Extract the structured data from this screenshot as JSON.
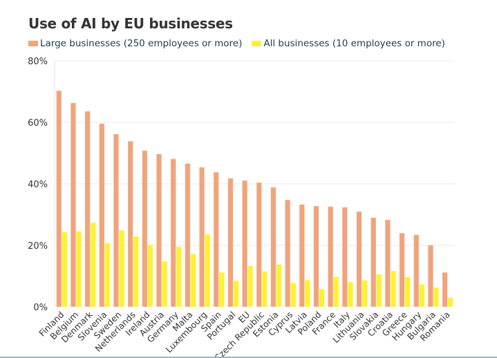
{
  "chart_data": {
    "type": "bar",
    "title": "Use of AI by EU businesses",
    "xlabel": "",
    "ylabel": "",
    "ylim": [
      0,
      80
    ],
    "yticks": [
      "0%",
      "20%",
      "40%",
      "60%",
      "80%"
    ],
    "ytick_values": [
      0,
      20,
      40,
      60,
      80
    ],
    "grid": true,
    "legend_position": "top-left",
    "categories": [
      "Finland",
      "Belgium",
      "Denmark",
      "Slovenia",
      "Sweden",
      "Netherlands",
      "Ireland",
      "Austria",
      "Germany",
      "Malta",
      "Luxembourg",
      "Spain",
      "Portugal",
      "EU",
      "Czech Republic",
      "Estonia",
      "Cyprus",
      "Latvia",
      "Poland",
      "France",
      "Italy",
      "Lithuania",
      "Slovakia",
      "Croatia",
      "Greece",
      "Hungary",
      "Bulgaria",
      "Romania"
    ],
    "series": [
      {
        "name": "Large businesses (250 employees or more)",
        "color": "#f0a47c",
        "values": [
          70.3,
          66.3,
          63.6,
          59.6,
          56.2,
          53.9,
          50.8,
          49.7,
          48.1,
          46.6,
          45.4,
          43.8,
          41.8,
          41.1,
          40.4,
          38.9,
          34.8,
          33.3,
          32.8,
          32.6,
          32.4,
          31.0,
          29.0,
          28.3,
          24.0,
          23.4,
          20.1,
          11.2
        ]
      },
      {
        "name": "All businesses (10 employees or more)",
        "color": "#fdf231",
        "values": [
          24.3,
          24.6,
          27.4,
          20.7,
          24.9,
          22.9,
          20.2,
          14.8,
          19.6,
          17.2,
          23.6,
          11.2,
          8.5,
          13.3,
          11.6,
          13.8,
          7.8,
          8.7,
          5.8,
          9.8,
          8.1,
          8.6,
          10.6,
          11.7,
          9.7,
          7.3,
          6.3,
          3.0
        ]
      }
    ]
  }
}
